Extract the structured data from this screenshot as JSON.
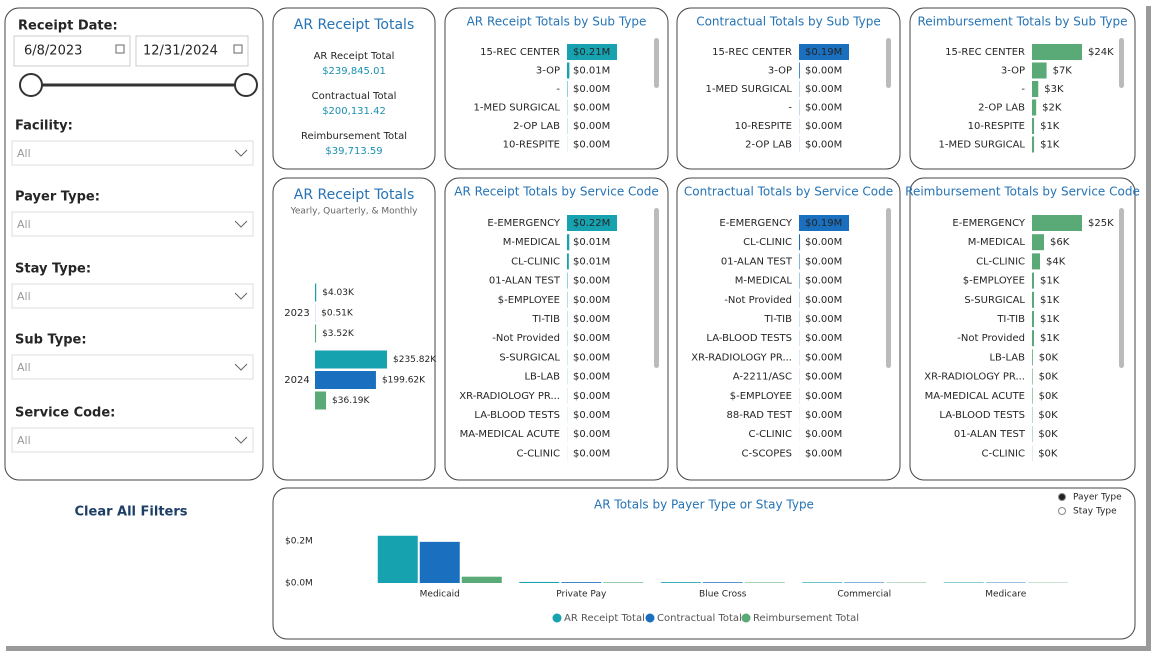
{
  "filters": {
    "receipt_date": {
      "label": "Receipt Date:",
      "start": "6/8/2023",
      "end": "12/31/2024"
    },
    "dropdowns": [
      {
        "label": "Facility:",
        "value": "All"
      },
      {
        "label": "Payer Type:",
        "value": "All"
      },
      {
        "label": "Stay Type:",
        "value": "All"
      },
      {
        "label": "Sub Type:",
        "value": "All"
      },
      {
        "label": "Service Code:",
        "value": "All"
      }
    ]
  },
  "clear_button": "Clear All Filters",
  "chart_data": [
    {
      "type": "card",
      "title": "AR Receipt Totals",
      "items": [
        {
          "label": "AR Receipt Total",
          "value": "$239,845.01"
        },
        {
          "label": "Contractual Total",
          "value": "$200,131.42"
        },
        {
          "label": "Reimbursement Total",
          "value": "$39,713.59"
        }
      ]
    },
    {
      "type": "hbar",
      "title": "AR Receipt Totals by Sub Type",
      "color": "#17a2b0",
      "categories": [
        "15-REC CENTER",
        "3-OP",
        "-",
        "1-MED SURGICAL",
        "2-OP LAB",
        "10-RESPITE"
      ],
      "values": [
        210000,
        10000,
        2000,
        1000,
        1000,
        500
      ],
      "value_labels": [
        "$0.21M",
        "$0.01M",
        "$0.00M",
        "$0.00M",
        "$0.00M",
        "$0.00M"
      ]
    },
    {
      "type": "hbar",
      "title": "Contractual Totals by Sub Type",
      "color": "#1a6fbe",
      "categories": [
        "15-REC CENTER",
        "3-OP",
        "1-MED SURGICAL",
        "-",
        "10-RESPITE",
        "2-OP LAB"
      ],
      "values": [
        190000,
        3000,
        1000,
        1000,
        500,
        500
      ],
      "value_labels": [
        "$0.19M",
        "$0.00M",
        "$0.00M",
        "$0.00M",
        "$0.00M",
        "$0.00M"
      ]
    },
    {
      "type": "hbar",
      "title": "Reimbursement Totals by Sub Type",
      "color": "#5aaa78",
      "categories": [
        "15-REC CENTER",
        "3-OP",
        "-",
        "2-OP LAB",
        "10-RESPITE",
        "1-MED SURGICAL"
      ],
      "values": [
        24000,
        7000,
        3000,
        2000,
        1000,
        1000
      ],
      "value_labels": [
        "$24K",
        "$7K",
        "$3K",
        "$2K",
        "$1K",
        "$1K"
      ]
    },
    {
      "type": "grouped_hbar",
      "title": "AR Receipt Totals",
      "subtitle": "Yearly, Quarterly, & Monthly",
      "categories": [
        "2023",
        "2024"
      ],
      "series": [
        {
          "color": "#17a2b0",
          "values": [
            4030,
            235820
          ],
          "value_labels": [
            "$4.03K",
            "$235.82K"
          ]
        },
        {
          "color": "#1a6fbe",
          "values": [
            510,
            199620
          ],
          "value_labels": [
            "$0.51K",
            "$199.62K"
          ]
        },
        {
          "color": "#5aaa78",
          "values": [
            3520,
            36190
          ],
          "value_labels": [
            "$3.52K",
            "$36.19K"
          ]
        }
      ]
    },
    {
      "type": "hbar",
      "title": "AR Receipt Totals by Service Code",
      "color": "#17a2b0",
      "categories": [
        "E-EMERGENCY",
        "M-MEDICAL",
        "CL-CLINIC",
        "01-ALAN TEST",
        "$-EMPLOYEE",
        "TI-TIB",
        "-Not Provided",
        "S-SURGICAL",
        "LB-LAB",
        "XR-RADIOLOGY PR...",
        "LA-BLOOD TESTS",
        "MA-MEDICAL ACUTE",
        "C-CLINIC"
      ],
      "values": [
        220000,
        10000,
        8000,
        2000,
        1500,
        1200,
        1000,
        900,
        800,
        600,
        500,
        400,
        300
      ],
      "value_labels": [
        "$0.22M",
        "$0.01M",
        "$0.01M",
        "$0.00M",
        "$0.00M",
        "$0.00M",
        "$0.00M",
        "$0.00M",
        "$0.00M",
        "$0.00M",
        "$0.00M",
        "$0.00M",
        "$0.00M"
      ]
    },
    {
      "type": "hbar",
      "title": "Contractual Totals by Service Code",
      "color": "#1a6fbe",
      "categories": [
        "E-EMERGENCY",
        "CL-CLINIC",
        "01-ALAN TEST",
        "M-MEDICAL",
        "-Not Provided",
        "TI-TIB",
        "LA-BLOOD TESTS",
        "XR-RADIOLOGY PR...",
        "A-2211/ASC",
        "$-EMPLOYEE",
        "88-RAD TEST",
        "C-CLINIC",
        "C-SCOPES"
      ],
      "values": [
        190000,
        4000,
        2000,
        1500,
        1000,
        800,
        700,
        600,
        500,
        400,
        300,
        200,
        100
      ],
      "value_labels": [
        "$0.19M",
        "$0.00M",
        "$0.00M",
        "$0.00M",
        "$0.00M",
        "$0.00M",
        "$0.00M",
        "$0.00M",
        "$0.00M",
        "$0.00M",
        "$0.00M",
        "$0.00M",
        "$0.00M"
      ]
    },
    {
      "type": "hbar",
      "title": "Reimbursement Totals by Service Code",
      "color": "#5aaa78",
      "categories": [
        "E-EMERGENCY",
        "M-MEDICAL",
        "CL-CLINIC",
        "$-EMPLOYEE",
        "S-SURGICAL",
        "TI-TIB",
        "-Not Provided",
        "LB-LAB",
        "XR-RADIOLOGY PR...",
        "MA-MEDICAL ACUTE",
        "LA-BLOOD TESTS",
        "01-ALAN TEST",
        "C-CLINIC"
      ],
      "values": [
        25000,
        6000,
        4000,
        1000,
        1000,
        1000,
        1000,
        400,
        300,
        300,
        200,
        200,
        100
      ],
      "value_labels": [
        "$25K",
        "$6K",
        "$4K",
        "$1K",
        "$1K",
        "$1K",
        "$1K",
        "$0K",
        "$0K",
        "$0K",
        "$0K",
        "$0K",
        "$0K"
      ]
    },
    {
      "type": "column",
      "title": "AR Totals by Payer Type or Stay Type",
      "categories": [
        "Medicaid",
        "Private Pay",
        "Blue Cross",
        "Commercial",
        "Medicare"
      ],
      "series": [
        {
          "name": "AR Receipt Total",
          "color": "#17a2b0",
          "values": [
            225000,
            5000,
            4000,
            3000,
            2500
          ]
        },
        {
          "name": "Contractual Total",
          "color": "#1a6fbe",
          "values": [
            196000,
            4000,
            3500,
            2500,
            2000
          ]
        },
        {
          "name": "Reimbursement Total",
          "color": "#5aaa78",
          "values": [
            30000,
            3000,
            2500,
            2000,
            1500
          ]
        }
      ],
      "ylim": [
        0,
        250000
      ],
      "yticks": [
        {
          "value": 0,
          "label": "$0.0M"
        },
        {
          "value": 200000,
          "label": "$0.2M"
        }
      ],
      "legend": "bottom",
      "options": [
        "Payer Type",
        "Stay Type"
      ],
      "selected_option": "Payer Type"
    }
  ]
}
